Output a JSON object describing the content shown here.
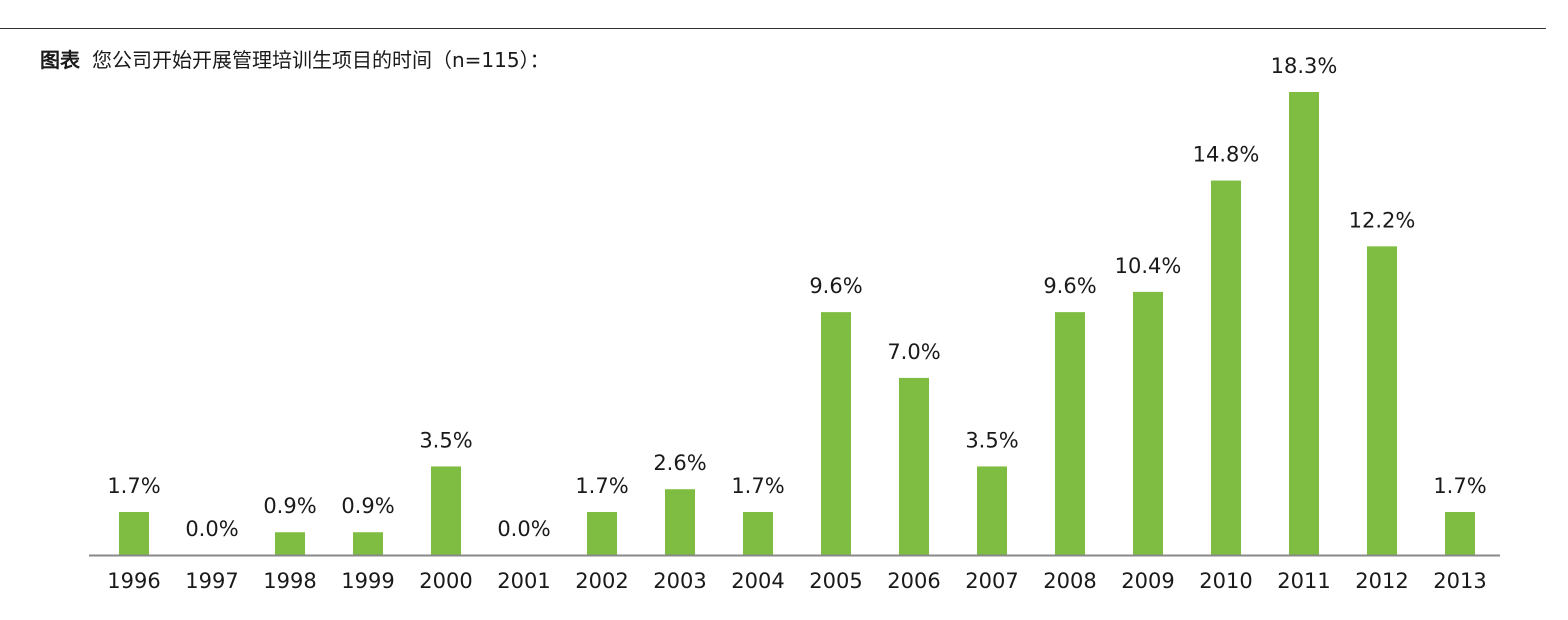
{
  "figure": {
    "prefix": "图表",
    "title": "您公司开始开展管理培训生项目的时间（n=115）："
  },
  "colors": {
    "bar": "#7fbd42",
    "axis": "#888888",
    "rule": "#333333"
  },
  "chart_data": {
    "type": "bar",
    "title": "您公司开始开展管理培训生项目的时间（n=115）：",
    "xlabel": "",
    "ylabel": "",
    "ylim": [
      0,
      20
    ],
    "grid": false,
    "legend": "none",
    "categories": [
      "1996",
      "1997",
      "1998",
      "1999",
      "2000",
      "2001",
      "2002",
      "2003",
      "2004",
      "2005",
      "2006",
      "2007",
      "2008",
      "2009",
      "2010",
      "2011",
      "2012",
      "2013"
    ],
    "values": [
      1.7,
      0.0,
      0.9,
      0.9,
      3.5,
      0.0,
      1.7,
      2.6,
      1.7,
      9.6,
      7.0,
      3.5,
      9.6,
      10.4,
      14.8,
      18.3,
      12.2,
      1.7
    ],
    "labels": [
      "1.7%",
      "0.0%",
      "0.9%",
      "0.9%",
      "3.5%",
      "0.0%",
      "1.7%",
      "2.6%",
      "1.7%",
      "9.6%",
      "7.0%",
      "3.5%",
      "9.6%",
      "10.4%",
      "14.8%",
      "18.3%",
      "12.2%",
      "1.7%"
    ]
  }
}
